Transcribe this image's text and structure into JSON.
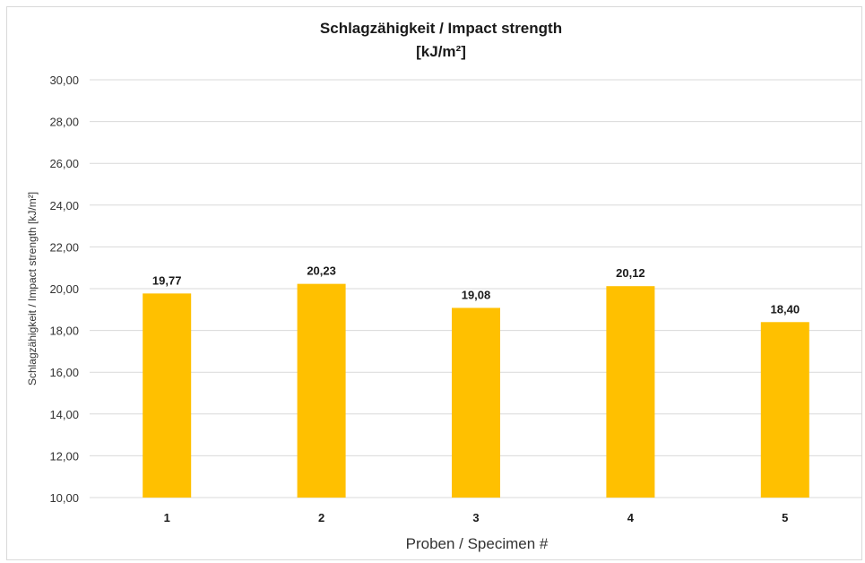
{
  "chart_data": {
    "type": "bar",
    "title_lines": [
      "Schlagzähigkeit / Impact strength",
      "[kJ/m²]"
    ],
    "xlabel": "Proben / Specimen #",
    "ylabel": "Schlagzähigkeit / Impact strength [kJ/m²]",
    "categories": [
      "1",
      "2",
      "3",
      "4",
      "5"
    ],
    "values": [
      19.77,
      20.23,
      19.08,
      20.12,
      18.4
    ],
    "value_labels": [
      "19,77",
      "20,23",
      "19,08",
      "20,12",
      "18,40"
    ],
    "ylim": [
      10,
      30
    ],
    "yticks": [
      10,
      12,
      14,
      16,
      18,
      20,
      22,
      24,
      26,
      28,
      30
    ],
    "ytick_labels": [
      "10,00",
      "12,00",
      "14,00",
      "16,00",
      "18,00",
      "20,00",
      "22,00",
      "24,00",
      "26,00",
      "28,00",
      "30,00"
    ],
    "grid": true,
    "bar_color": "#FFC000",
    "grid_color": "#d9d9d9"
  }
}
